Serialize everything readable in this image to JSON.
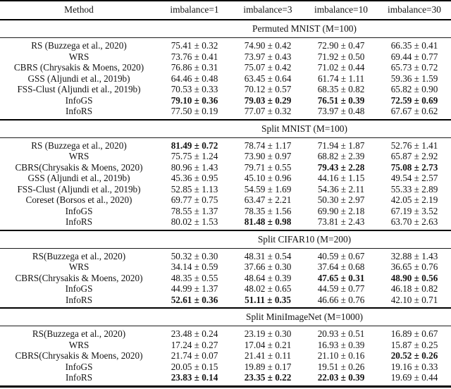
{
  "table": {
    "columns": [
      "Method",
      "imbalance=1",
      "imbalance=3",
      "imbalance=10",
      "imbalance=30"
    ],
    "sections": [
      {
        "title": "Permuted MNIST (M=100)",
        "rows": [
          {
            "method": "RS (Buzzega et al., 2020)",
            "cells": [
              {
                "text": "75.41 ± 0.32",
                "bold": false
              },
              {
                "text": "74.90 ± 0.42",
                "bold": false
              },
              {
                "text": "72.90 ± 0.47",
                "bold": false
              },
              {
                "text": "66.35 ± 0.41",
                "bold": false
              }
            ]
          },
          {
            "method": "WRS",
            "cells": [
              {
                "text": "73.76 ± 0.41",
                "bold": false
              },
              {
                "text": "73.97 ± 0.43",
                "bold": false
              },
              {
                "text": "71.92 ± 0.50",
                "bold": false
              },
              {
                "text": "69.44 ± 0.77",
                "bold": false
              }
            ]
          },
          {
            "method": "CBRS (Chrysakis & Moens, 2020)",
            "cells": [
              {
                "text": "76.86 ± 0.31",
                "bold": false
              },
              {
                "text": "75.07 ± 0.42",
                "bold": false
              },
              {
                "text": "71.02 ± 0.44",
                "bold": false
              },
              {
                "text": "65.73 ± 0.72",
                "bold": false
              }
            ]
          },
          {
            "method": "GSS (Aljundi et al., 2019b)",
            "cells": [
              {
                "text": "64.46 ± 0.48",
                "bold": false
              },
              {
                "text": "63.45 ± 0.64",
                "bold": false
              },
              {
                "text": "61.74 ± 1.11",
                "bold": false
              },
              {
                "text": "59.36 ± 1.59",
                "bold": false
              }
            ]
          },
          {
            "method": "FSS-Clust (Aljundi et al., 2019b)",
            "cells": [
              {
                "text": "70.53 ± 0.33",
                "bold": false
              },
              {
                "text": "70.12 ± 0.57",
                "bold": false
              },
              {
                "text": "68.35 ± 0.82",
                "bold": false
              },
              {
                "text": "65.82 ± 0.90",
                "bold": false
              }
            ]
          },
          {
            "method": "InfoGS",
            "cells": [
              {
                "text": "79.10 ± 0.36",
                "bold": true
              },
              {
                "text": "79.03 ± 0.29",
                "bold": true
              },
              {
                "text": "76.51 ± 0.39",
                "bold": true
              },
              {
                "text": "72.59 ± 0.69",
                "bold": true
              }
            ]
          },
          {
            "method": "InfoRS",
            "cells": [
              {
                "text": "77.50 ± 0.19",
                "bold": false
              },
              {
                "text": "77.07 ± 0.32",
                "bold": false
              },
              {
                "text": "73.97 ± 0.48",
                "bold": false
              },
              {
                "text": "67.67 ± 0.62",
                "bold": false
              }
            ]
          }
        ]
      },
      {
        "title": "Split MNIST (M=100)",
        "rows": [
          {
            "method": "RS (Buzzega et al., 2020)",
            "cells": [
              {
                "text": "81.49 ± 0.72",
                "bold": true
              },
              {
                "text": "78.74 ± 1.17",
                "bold": false
              },
              {
                "text": "71.94 ± 1.87",
                "bold": false
              },
              {
                "text": "52.76 ± 1.41",
                "bold": false
              }
            ]
          },
          {
            "method": "WRS",
            "cells": [
              {
                "text": "75.75 ± 1.24",
                "bold": false
              },
              {
                "text": "73.90 ± 0.97",
                "bold": false
              },
              {
                "text": "68.82 ± 2.39",
                "bold": false
              },
              {
                "text": "65.87 ± 2.92",
                "bold": false
              }
            ]
          },
          {
            "method": "CBRS(Chrysakis & Moens, 2020)",
            "cells": [
              {
                "text": "80.96 ± 1.43",
                "bold": false
              },
              {
                "text": "79.71 ± 0.55",
                "bold": false
              },
              {
                "text": "79.43 ± 2.28",
                "bold": true
              },
              {
                "text": "75.08 ± 2.73",
                "bold": true
              }
            ]
          },
          {
            "method": "GSS (Aljundi et al., 2019b)",
            "cells": [
              {
                "text": "45.36 ± 0.95",
                "bold": false
              },
              {
                "text": "45.10 ± 0.96",
                "bold": false
              },
              {
                "text": "44.16 ± 1.15",
                "bold": false
              },
              {
                "text": "49.54 ± 2.57",
                "bold": false
              }
            ]
          },
          {
            "method": "FSS-Clust (Aljundi et al., 2019b)",
            "cells": [
              {
                "text": "52.85 ± 1.13",
                "bold": false
              },
              {
                "text": "54.59 ± 1.69",
                "bold": false
              },
              {
                "text": "54.36 ± 2.11",
                "bold": false
              },
              {
                "text": "55.33 ± 2.89",
                "bold": false
              }
            ]
          },
          {
            "method": "Coreset (Borsos et al., 2020)",
            "cells": [
              {
                "text": "69.77 ± 0.75",
                "bold": false
              },
              {
                "text": "63.47 ± 2.21",
                "bold": false
              },
              {
                "text": "50.30 ± 2.97",
                "bold": false
              },
              {
                "text": "42.05 ± 2.19",
                "bold": false
              }
            ]
          },
          {
            "method": "InfoGS",
            "cells": [
              {
                "text": "78.55 ± 1.37",
                "bold": false
              },
              {
                "text": "78.35 ± 1.56",
                "bold": false
              },
              {
                "text": "69.90 ± 2.18",
                "bold": false
              },
              {
                "text": "67.19 ± 3.52",
                "bold": false
              }
            ]
          },
          {
            "method": "InfoRS",
            "cells": [
              {
                "text": "80.02 ± 1.53",
                "bold": false
              },
              {
                "text": "81.48 ± 0.98",
                "bold": true
              },
              {
                "text": "73.81 ± 2.43",
                "bold": false
              },
              {
                "text": "63.70 ± 2.63",
                "bold": false
              }
            ]
          }
        ]
      },
      {
        "title": "Split CIFAR10 (M=200)",
        "rows": [
          {
            "method": "RS(Buzzega et al., 2020)",
            "cells": [
              {
                "text": "50.32 ± 0.30",
                "bold": false
              },
              {
                "text": "48.31 ± 0.54",
                "bold": false
              },
              {
                "text": "40.59 ± 0.67",
                "bold": false
              },
              {
                "text": "32.88 ± 1.43",
                "bold": false
              }
            ]
          },
          {
            "method": "WRS",
            "cells": [
              {
                "text": "34.14 ± 0.59",
                "bold": false
              },
              {
                "text": "37.66 ± 0.30",
                "bold": false
              },
              {
                "text": "37.64 ± 0.68",
                "bold": false
              },
              {
                "text": "36.65 ± 0.76",
                "bold": false
              }
            ]
          },
          {
            "method": "CBRS(Chrysakis & Moens, 2020)",
            "cells": [
              {
                "text": "48.35 ± 0.55",
                "bold": false
              },
              {
                "text": "48.64 ± 0.39",
                "bold": false
              },
              {
                "text": "47.65 ± 0.31",
                "bold": true
              },
              {
                "text": "48.90 ± 0.56",
                "bold": true
              }
            ]
          },
          {
            "method": "InfoGS",
            "cells": [
              {
                "text": "44.99 ± 1.37",
                "bold": false
              },
              {
                "text": "48.02 ± 0.65",
                "bold": false
              },
              {
                "text": "44.59 ± 0.77",
                "bold": false
              },
              {
                "text": "46.18 ± 0.82",
                "bold": false
              }
            ]
          },
          {
            "method": "InfoRS",
            "cells": [
              {
                "text": "52.61 ± 0.36",
                "bold": true
              },
              {
                "text": "51.11 ± 0.35",
                "bold": true
              },
              {
                "text": "46.66 ± 0.76",
                "bold": false
              },
              {
                "text": "42.10 ± 0.71",
                "bold": false
              }
            ]
          }
        ]
      },
      {
        "title": "Split MiniImageNet (M=1000)",
        "rows": [
          {
            "method": "RS(Buzzega et al., 2020)",
            "cells": [
              {
                "text": "23.48 ± 0.24",
                "bold": false
              },
              {
                "text": "23.19 ± 0.30",
                "bold": false
              },
              {
                "text": "20.93 ± 0.51",
                "bold": false
              },
              {
                "text": "16.89 ± 0.67",
                "bold": false
              }
            ]
          },
          {
            "method": "WRS",
            "cells": [
              {
                "text": "17.24 ± 0.27",
                "bold": false
              },
              {
                "text": "17.04 ± 0.21",
                "bold": false
              },
              {
                "text": "16.93 ± 0.39",
                "bold": false
              },
              {
                "text": "15.87 ± 0.25",
                "bold": false
              }
            ]
          },
          {
            "method": "CBRS(Chrysakis & Moens, 2020)",
            "cells": [
              {
                "text": "21.74 ± 0.07",
                "bold": false
              },
              {
                "text": "21.41 ± 0.11",
                "bold": false
              },
              {
                "text": "21.10 ± 0.16",
                "bold": false
              },
              {
                "text": "20.52 ± 0.26",
                "bold": true
              }
            ]
          },
          {
            "method": "InfoGS",
            "cells": [
              {
                "text": "20.05 ± 0.15",
                "bold": false
              },
              {
                "text": "19.89 ± 0.17",
                "bold": false
              },
              {
                "text": "19.51 ± 0.26",
                "bold": false
              },
              {
                "text": "19.16 ± 0.33",
                "bold": false
              }
            ]
          },
          {
            "method": "InfoRS",
            "cells": [
              {
                "text": "23.83 ± 0.14",
                "bold": true
              },
              {
                "text": "23.35 ± 0.22",
                "bold": true
              },
              {
                "text": "22.03 ± 0.39",
                "bold": true
              },
              {
                "text": "19.69 ± 0.44",
                "bold": false
              }
            ]
          }
        ]
      }
    ]
  }
}
